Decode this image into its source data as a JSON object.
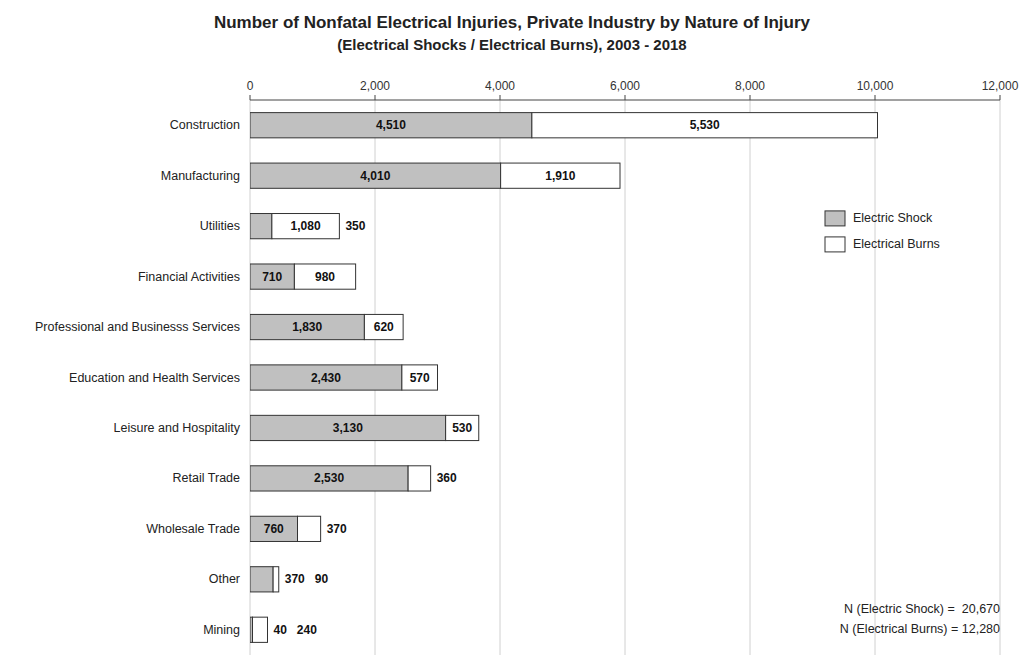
{
  "chart_data": {
    "type": "bar",
    "orientation": "horizontal",
    "stacked": true,
    "data_labels": true,
    "grid": true,
    "legend": "upper right",
    "title": "Number of Nonfatal Electrical Injuries, Private Industry by Nature of Injury",
    "subtitle": "(Electrical Shocks / Electrical Burns), 2003 - 2018",
    "categories": [
      "Construction",
      "Manufacturing",
      "Utilities",
      "Financial Activities",
      "Professional and Businesss Services",
      "Education and Health Services",
      "Leisure and Hospitality",
      "Retail Trade",
      "Wholesale Trade",
      "Other",
      "Mining"
    ],
    "series": [
      {
        "name": "Electric Shock",
        "color": "#C0C0C0",
        "values": [
          4510,
          4010,
          350,
          710,
          1830,
          2430,
          3130,
          2530,
          760,
          370,
          40
        ],
        "value_labels": [
          "4,510",
          "4,010",
          "350",
          "710",
          "1,830",
          "2,430",
          "3,130",
          "2,530",
          "760",
          "370",
          "40"
        ]
      },
      {
        "name": "Electrical Burns",
        "color": "#FFFFFF",
        "values": [
          5530,
          1910,
          1080,
          980,
          620,
          570,
          530,
          360,
          370,
          90,
          240
        ],
        "value_labels": [
          "5,530",
          "1,910",
          "1,080",
          "980",
          "620",
          "570",
          "530",
          "360",
          "370",
          "90",
          "240"
        ]
      }
    ],
    "xlim": [
      0,
      12000
    ],
    "xticks": [
      0,
      {
        "value": 2000,
        "label": "2,000"
      },
      {
        "value": 4000,
        "label": "4,000"
      },
      {
        "value": 6000,
        "label": "6,000"
      },
      {
        "value": 8000,
        "label": "8,000"
      },
      {
        "value": 10000,
        "label": "10,000"
      },
      {
        "value": 12000,
        "label": "12,000"
      }
    ],
    "annotations": [
      "N (Electric Shock) =  20,670",
      "N (Electrical Burns) = 12,280"
    ]
  }
}
